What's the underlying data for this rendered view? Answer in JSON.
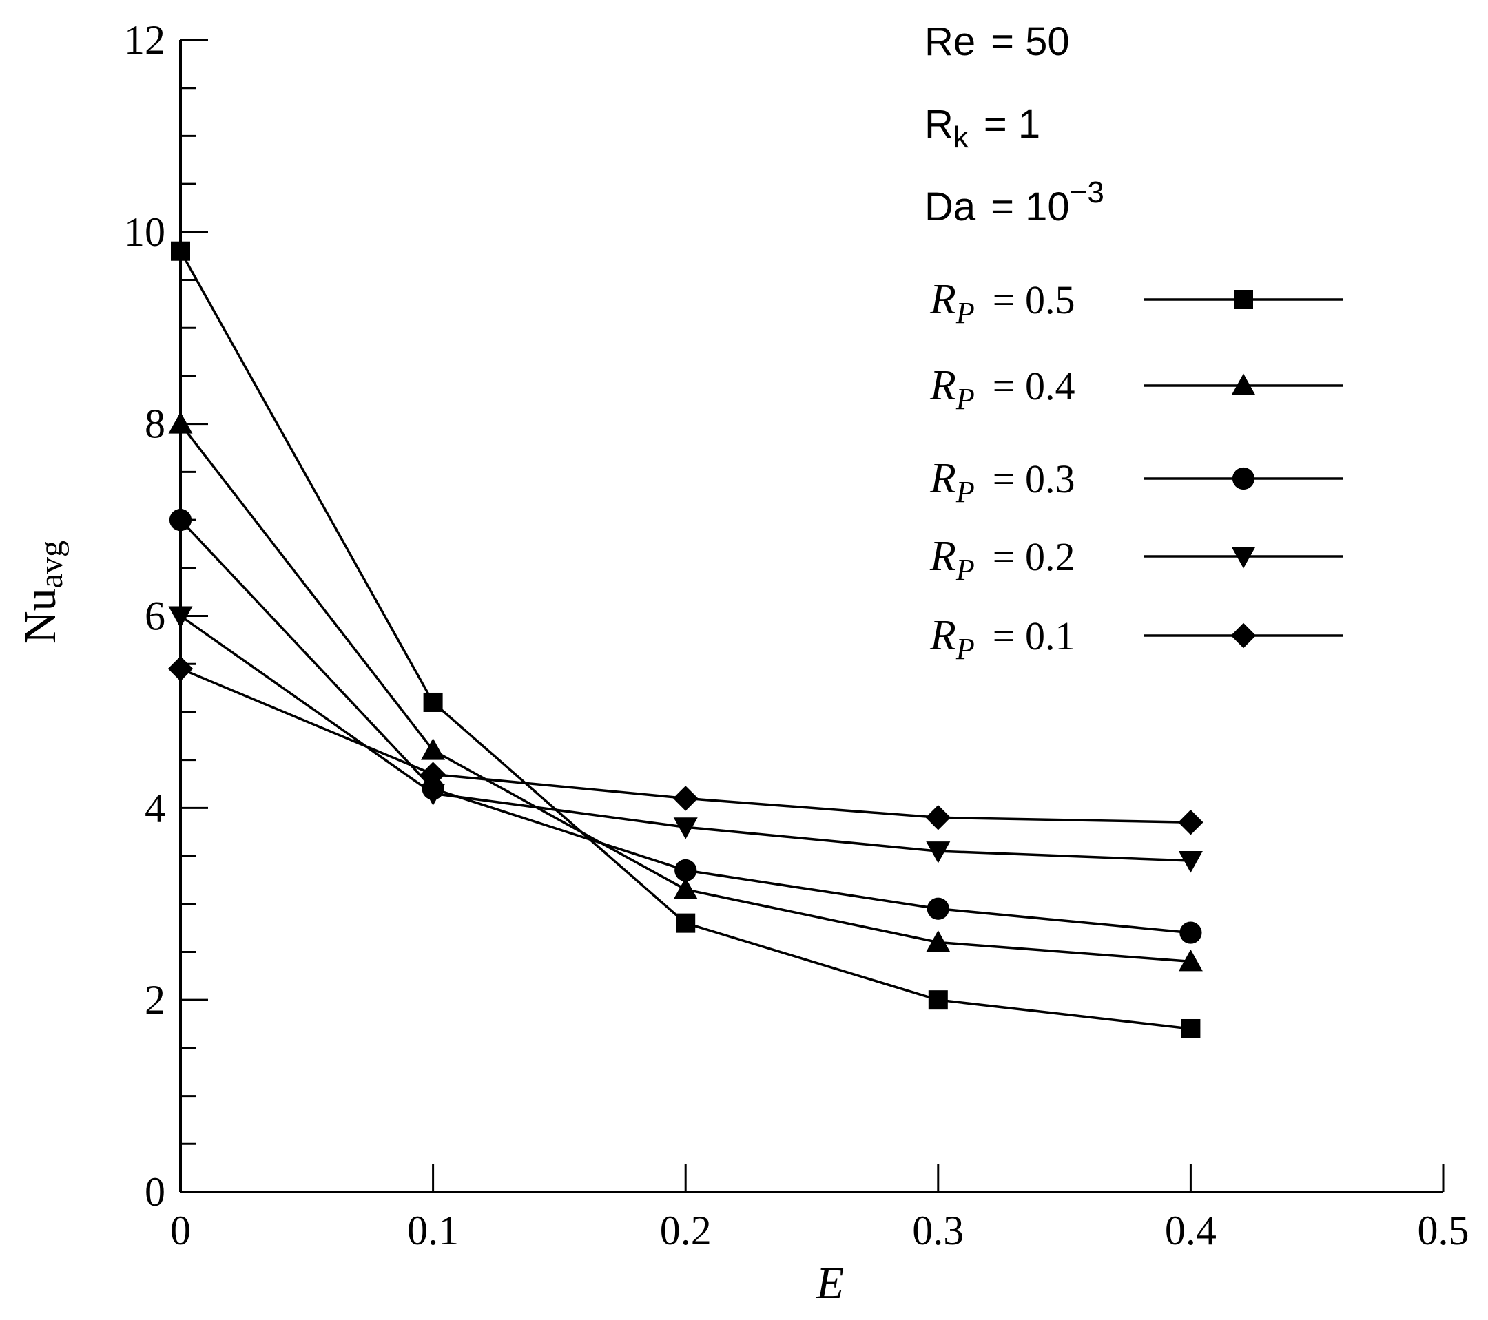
{
  "chart_data": {
    "type": "line",
    "xlabel": "E",
    "ylabel": "Nu",
    "ylabel_sub": "avg",
    "xlim": [
      0,
      0.5
    ],
    "ylim": [
      0,
      12
    ],
    "x_ticks": [
      "0",
      "0.1",
      "0.2",
      "0.3",
      "0.4",
      "0.5"
    ],
    "y_ticks": [
      "0",
      "2",
      "4",
      "6",
      "8",
      "10",
      "12"
    ],
    "x": [
      0,
      0.1,
      0.2,
      0.3,
      0.4
    ],
    "grid": false,
    "legend_position": "top-right",
    "annotations": {
      "re": {
        "lhs": "Re",
        "rhs": "= 50"
      },
      "rk": {
        "lhs": "R",
        "lhs_sub": "k",
        "rhs": "= 1"
      },
      "da": {
        "lhs": "Da",
        "rhs": "= 10",
        "rhs_sup": "−3"
      }
    },
    "series": [
      {
        "name": "R_P = 0.5",
        "label_main": "R",
        "label_sub": "P",
        "label_value": "= 0.5",
        "marker": "square",
        "values": [
          9.8,
          5.1,
          2.8,
          2.0,
          1.7
        ]
      },
      {
        "name": "R_P = 0.4",
        "label_main": "R",
        "label_sub": "P",
        "label_value": "= 0.4",
        "marker": "triangle-up",
        "values": [
          8.0,
          4.6,
          3.15,
          2.6,
          2.4
        ]
      },
      {
        "name": "R_P = 0.3",
        "label_main": "R",
        "label_sub": "P",
        "label_value": "= 0.3",
        "marker": "circle",
        "values": [
          7.0,
          4.2,
          3.35,
          2.95,
          2.7
        ]
      },
      {
        "name": "R_P = 0.2",
        "label_main": "R",
        "label_sub": "P",
        "label_value": "= 0.2",
        "marker": "triangle-down",
        "values": [
          6.0,
          4.15,
          3.8,
          3.55,
          3.45
        ]
      },
      {
        "name": "R_P = 0.1",
        "label_main": "R",
        "label_sub": "P",
        "label_value": "= 0.1",
        "marker": "diamond",
        "values": [
          5.45,
          4.35,
          4.1,
          3.9,
          3.85
        ]
      }
    ],
    "colors": {
      "line": "#000000",
      "marker": "#000000",
      "axis": "#000000"
    }
  }
}
